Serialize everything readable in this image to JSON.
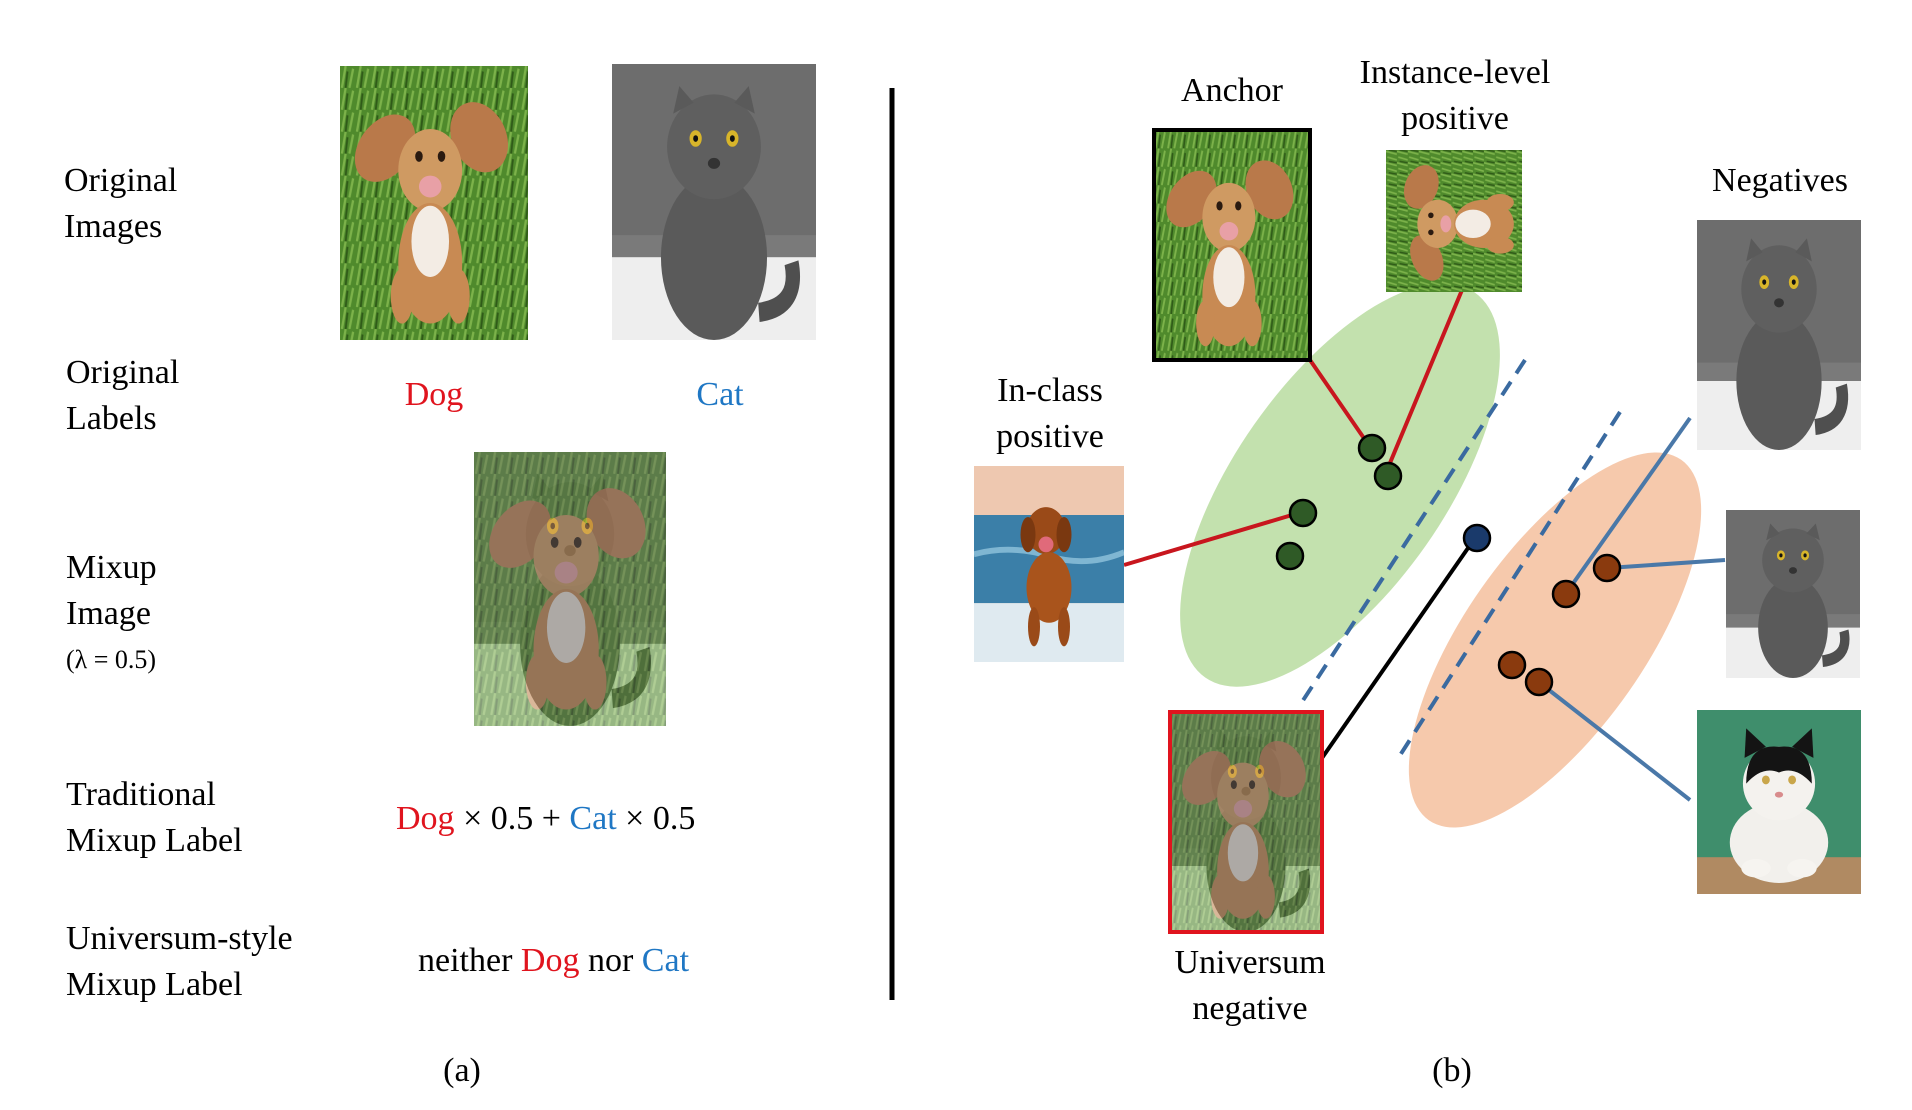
{
  "panel_a": {
    "row1_line1": "Original",
    "row1_line2": "Images",
    "row2_line1": "Original",
    "row2_line2": "Labels",
    "row3_line1": "Mixup",
    "row3_line2": "Image",
    "row3_line3": "(λ = 0.5)",
    "row4_line1": "Traditional",
    "row4_line2": "Mixup Label",
    "row5_line1": "Universum-style",
    "row5_line2": "Mixup Label",
    "label_dog": "Dog",
    "label_cat": "Cat",
    "trad_dog": "Dog",
    "trad_mid": " × 0.5 + ",
    "trad_cat": "Cat",
    "trad_end": " × 0.5",
    "uni_start": "neither ",
    "uni_dog": "Dog",
    "uni_mid": " nor ",
    "uni_cat": "Cat",
    "caption": "(a)"
  },
  "panel_b": {
    "anchor": "Anchor",
    "instance_line1": "Instance-level",
    "instance_line2": "positive",
    "inclass_line1": "In-class",
    "inclass_line2": "positive",
    "negatives": "Negatives",
    "universum_line1": "Universum",
    "universum_line2": "negative",
    "caption": "(b)"
  },
  "colors": {
    "red_label": "#e0141e",
    "blue_label": "#1f77c4",
    "green_ellipse": "#b9dca0",
    "orange_ellipse": "#f5c3a3",
    "green_point": "#2f5a26",
    "brown_point": "#8a3a0e",
    "navy_point": "#1a3a6b",
    "red_line": "#c8161e",
    "blue_line": "#4a78a8"
  }
}
